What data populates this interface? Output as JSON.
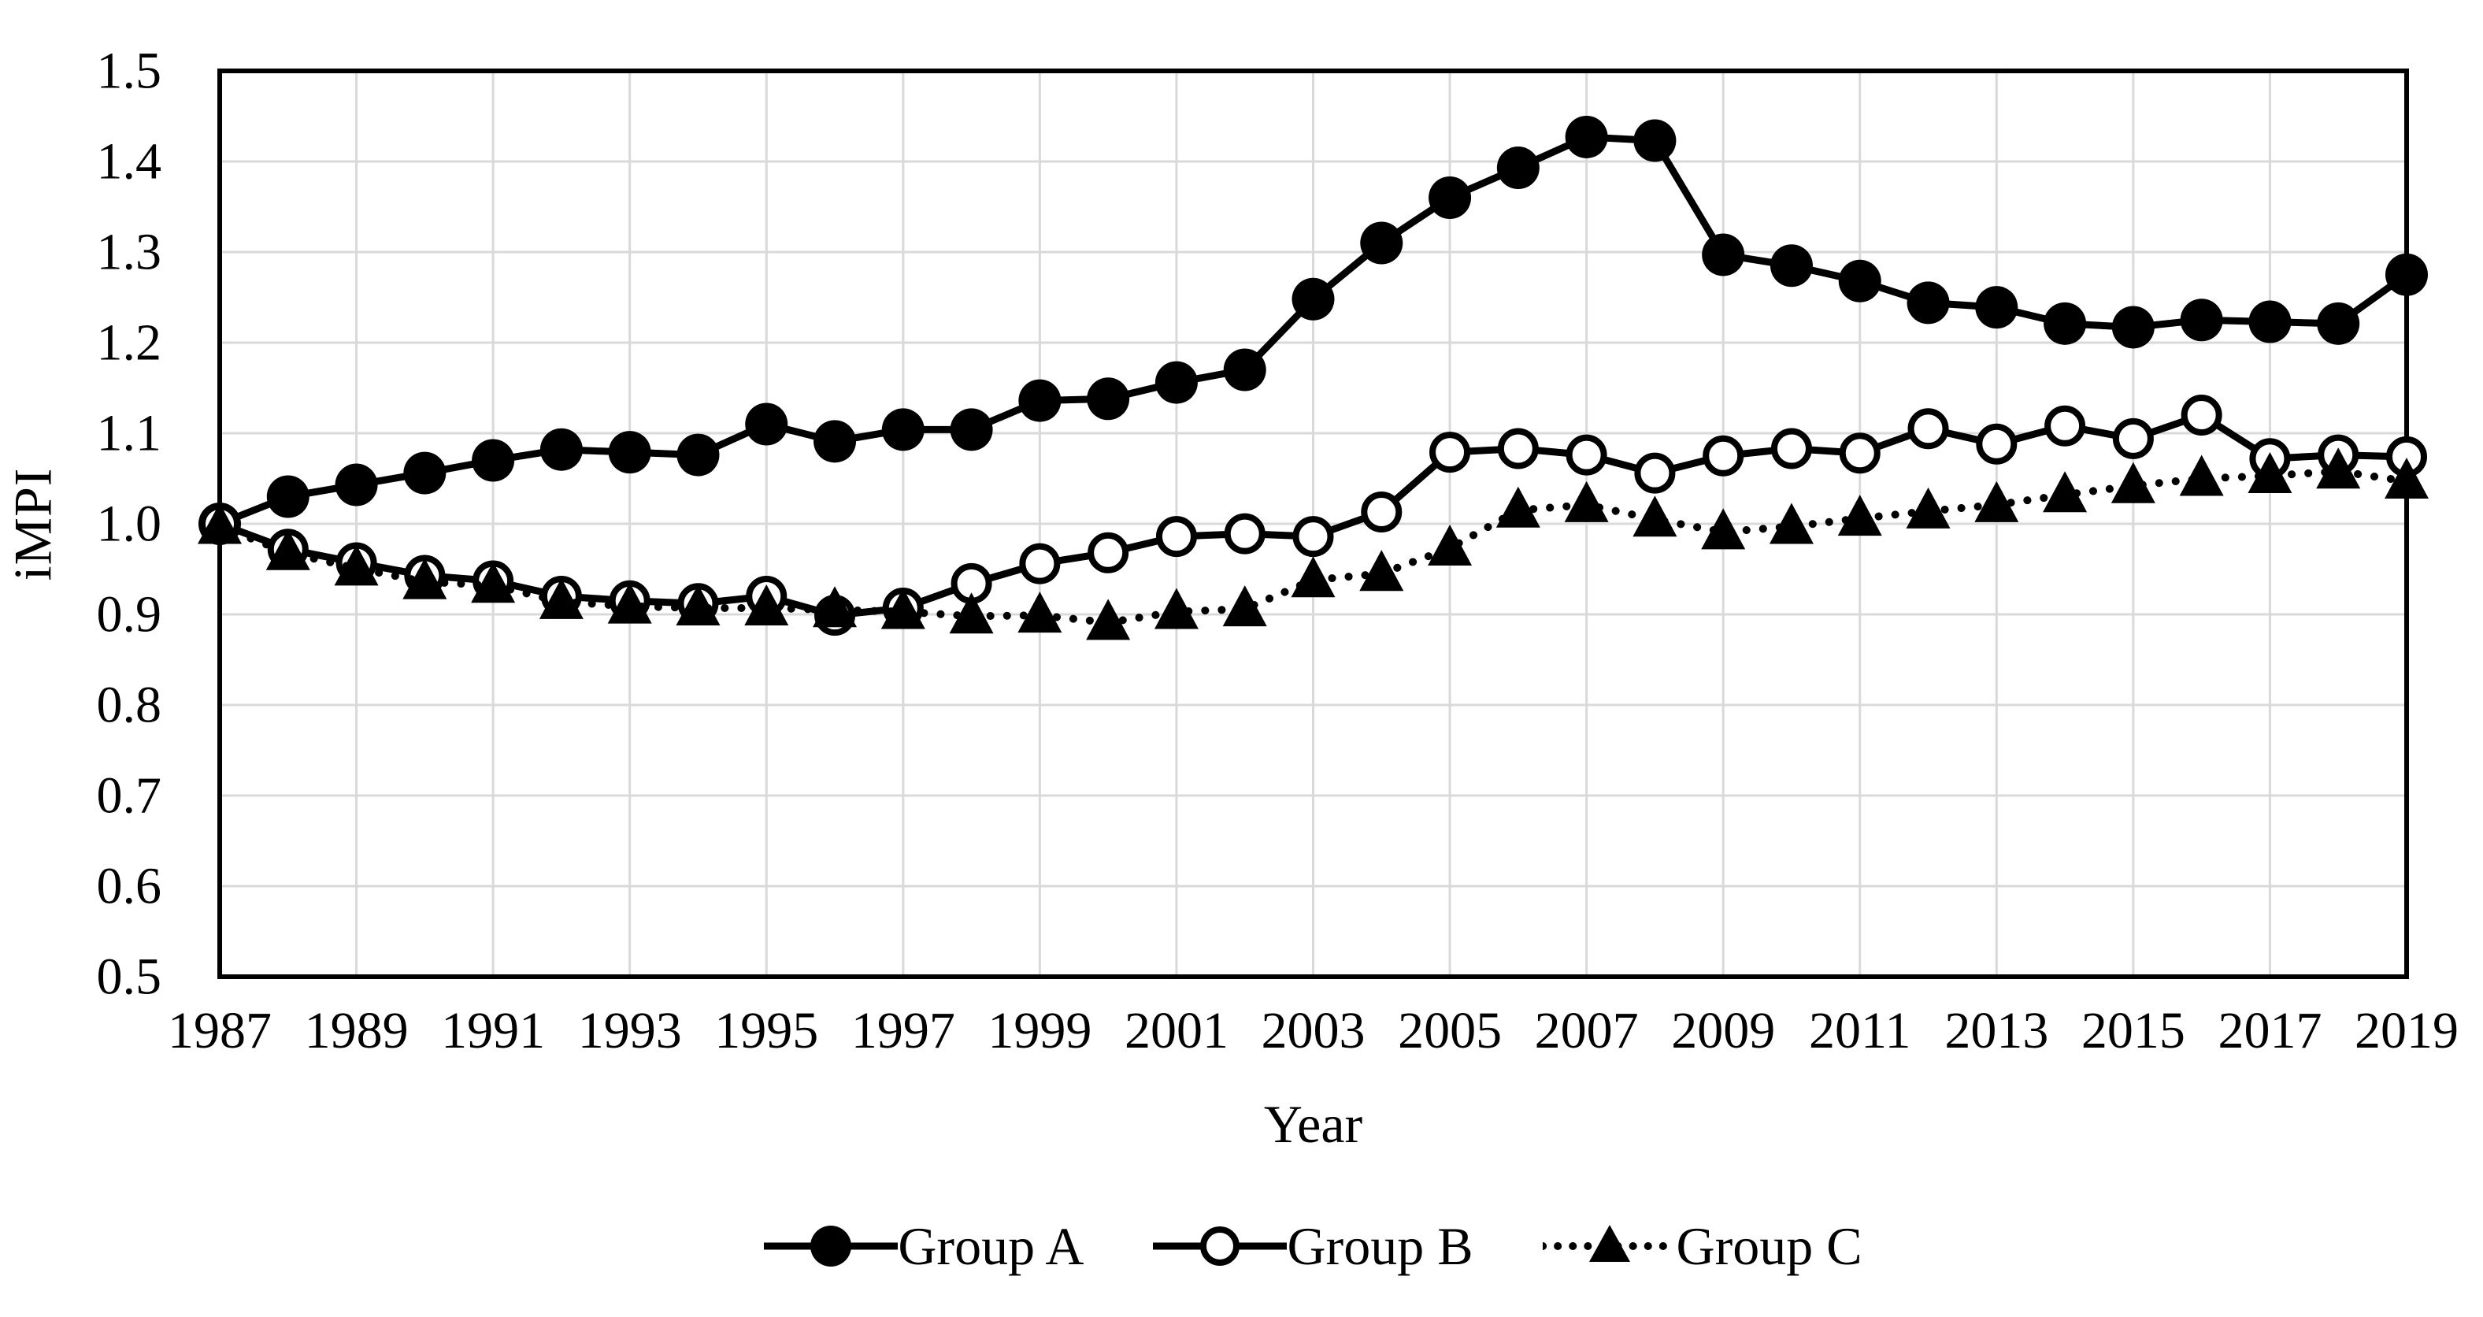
{
  "chart_data": {
    "type": "line",
    "title": "",
    "ylabel": "iMPI",
    "xlabel": "Year",
    "ylim": [
      0.5,
      1.5
    ],
    "y_tick_step": 0.1,
    "grid": true,
    "legend_position": "bottom",
    "colors": {
      "series": "#000000",
      "grid": "#d9d9d9",
      "frame": "#000000",
      "background": "#ffffff"
    },
    "y_ticks": [
      "1.5",
      "1.4",
      "1.3",
      "1.2",
      "1.1",
      "1.0",
      "0.9",
      "0.8",
      "0.7",
      "0.6",
      "0.5"
    ],
    "x_ticks": [
      "1987",
      "1989",
      "1991",
      "1993",
      "1995",
      "1997",
      "1999",
      "2001",
      "2003",
      "2005",
      "2007",
      "2009",
      "2011",
      "2013",
      "2015",
      "2017",
      "2019"
    ],
    "x": [
      1987,
      1988,
      1989,
      1990,
      1991,
      1992,
      1993,
      1994,
      1995,
      1996,
      1997,
      1998,
      1999,
      2000,
      2001,
      2002,
      2003,
      2004,
      2005,
      2006,
      2007,
      2008,
      2009,
      2010,
      2011,
      2012,
      2013,
      2014,
      2015,
      2016,
      2017,
      2018,
      2019
    ],
    "series": [
      {
        "name": "Group A",
        "marker": "filled-circle",
        "line": "solid",
        "values": [
          1.0,
          1.03,
          1.043,
          1.056,
          1.07,
          1.082,
          1.079,
          1.076,
          1.11,
          1.091,
          1.104,
          1.104,
          1.136,
          1.138,
          1.156,
          1.17,
          1.248,
          1.31,
          1.36,
          1.393,
          1.427,
          1.423,
          1.297,
          1.285,
          1.268,
          1.244,
          1.239,
          1.221,
          1.217,
          1.225,
          1.223,
          1.221,
          1.275
        ]
      },
      {
        "name": "Group B",
        "marker": "open-circle",
        "line": "solid",
        "values": [
          1.0,
          0.972,
          0.957,
          0.943,
          0.937,
          0.92,
          0.915,
          0.912,
          0.92,
          0.899,
          0.907,
          0.934,
          0.956,
          0.968,
          0.986,
          0.989,
          0.986,
          1.013,
          1.079,
          1.083,
          1.076,
          1.056,
          1.075,
          1.083,
          1.078,
          1.105,
          1.088,
          1.108,
          1.094,
          1.12,
          1.072,
          1.076,
          1.074
        ]
      },
      {
        "name": "Group C",
        "marker": "filled-triangle",
        "line": "dotted",
        "values": [
          0.997,
          0.968,
          0.951,
          0.936,
          0.932,
          0.914,
          0.909,
          0.907,
          0.907,
          0.905,
          0.903,
          0.898,
          0.899,
          0.891,
          0.903,
          0.906,
          0.938,
          0.945,
          0.973,
          1.015,
          1.021,
          1.005,
          0.991,
          0.997,
          1.006,
          1.014,
          1.021,
          1.032,
          1.042,
          1.05,
          1.053,
          1.058,
          1.047
        ]
      }
    ]
  }
}
